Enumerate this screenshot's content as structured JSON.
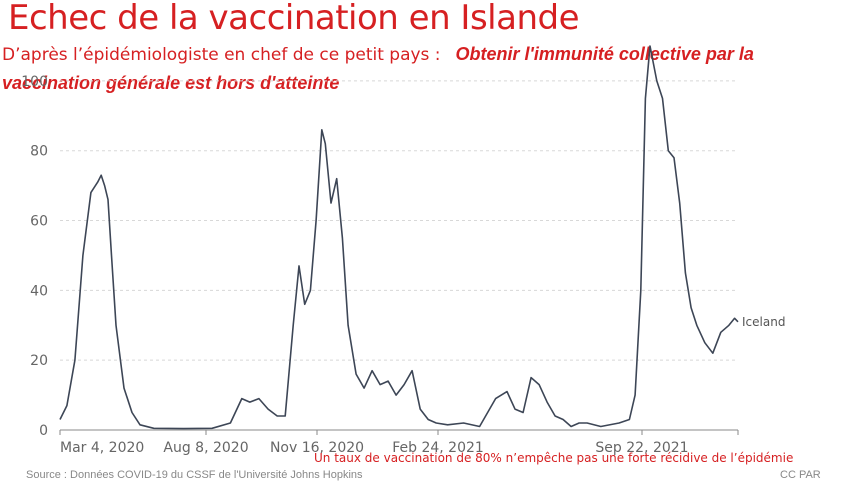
{
  "header": {
    "title": "Echec de la vaccination en Islande",
    "subtitle_lead": "D’après l’épidémiologiste en chef de ce petit pays :",
    "subtitle_quote": "Obtenir l'immunité collective par la vaccination générale est hors d'atteinte"
  },
  "chart_data": {
    "type": "line",
    "ylim": [
      0,
      110
    ],
    "y_ticks": [
      0,
      20,
      40,
      60,
      80,
      100
    ],
    "x_ticks": [
      "Mar 4, 2020",
      "Aug 8, 2020",
      "Nov 16, 2020",
      "Feb 24, 2021",
      "Sep 22, 2021"
    ],
    "grid": true,
    "series": [
      {
        "name": "Iceland",
        "color": "#3d4656",
        "x": [
          "2020-02-28",
          "2020-03-05",
          "2020-03-12",
          "2020-03-19",
          "2020-03-26",
          "2020-04-01",
          "2020-04-04",
          "2020-04-07",
          "2020-04-10",
          "2020-04-13",
          "2020-04-17",
          "2020-04-24",
          "2020-05-01",
          "2020-05-08",
          "2020-05-20",
          "2020-06-15",
          "2020-07-10",
          "2020-07-26",
          "2020-08-05",
          "2020-08-12",
          "2020-08-20",
          "2020-08-28",
          "2020-09-05",
          "2020-09-12",
          "2020-09-19",
          "2020-09-24",
          "2020-09-29",
          "2020-10-04",
          "2020-10-09",
          "2020-10-14",
          "2020-10-17",
          "2020-10-22",
          "2020-10-27",
          "2020-11-01",
          "2020-11-06",
          "2020-11-13",
          "2020-11-20",
          "2020-11-27",
          "2020-12-04",
          "2020-12-11",
          "2020-12-18",
          "2020-12-25",
          "2021-01-01",
          "2021-01-08",
          "2021-01-15",
          "2021-01-22",
          "2021-02-01",
          "2021-02-15",
          "2021-03-01",
          "2021-03-15",
          "2021-03-25",
          "2021-04-01",
          "2021-04-08",
          "2021-04-15",
          "2021-04-22",
          "2021-04-29",
          "2021-05-06",
          "2021-05-13",
          "2021-05-20",
          "2021-05-27",
          "2021-06-03",
          "2021-06-15",
          "2021-07-01",
          "2021-07-10",
          "2021-07-15",
          "2021-07-20",
          "2021-07-24",
          "2021-07-28",
          "2021-08-03",
          "2021-08-08",
          "2021-08-13",
          "2021-08-18",
          "2021-08-23",
          "2021-08-28",
          "2021-09-02",
          "2021-09-07",
          "2021-09-14",
          "2021-09-21",
          "2021-09-28",
          "2021-10-05",
          "2021-10-10",
          "2021-10-13"
        ],
        "y": [
          3,
          7,
          20,
          50,
          68,
          71,
          73,
          70,
          66,
          50,
          30,
          12,
          5,
          1.5,
          0.5,
          0.4,
          0.5,
          2,
          9,
          8,
          9,
          6,
          4,
          4,
          30,
          47,
          36,
          40,
          60,
          86,
          82,
          65,
          72,
          55,
          30,
          16,
          12,
          17,
          13,
          14,
          10,
          13,
          17,
          6,
          3,
          2,
          1.5,
          2,
          1,
          9,
          11,
          6,
          5,
          15,
          13,
          8,
          4,
          3,
          1,
          2,
          2,
          1,
          2,
          3,
          10,
          40,
          95,
          110,
          100,
          95,
          80,
          78,
          65,
          45,
          35,
          30,
          25,
          22,
          28,
          30,
          32,
          31
        ]
      }
    ]
  },
  "footer": {
    "note": "Un taux de vaccination de 80% n’empêche pas une forte récidive de l’épidémie",
    "source": "Source : Données COVID-19 du CSSF de l'Université Johns Hopkins",
    "credit": "CC PAR"
  }
}
